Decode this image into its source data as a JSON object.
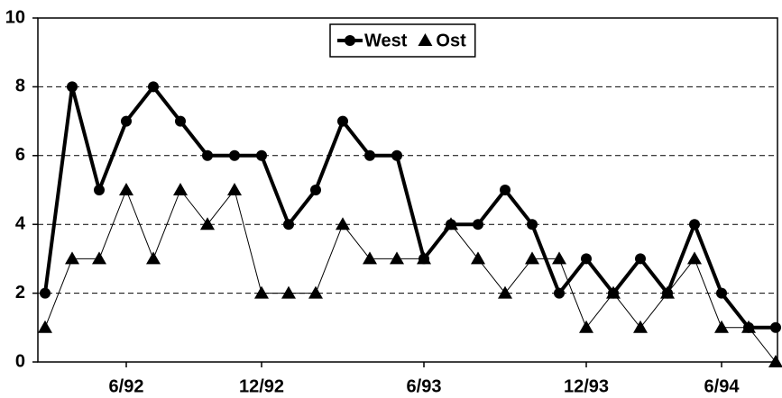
{
  "chart_data": {
    "type": "line",
    "categories": [
      null,
      null,
      null,
      "6/92",
      null,
      null,
      null,
      null,
      "12/92",
      null,
      null,
      null,
      null,
      null,
      "6/93",
      null,
      null,
      null,
      null,
      null,
      "12/93",
      null,
      null,
      null,
      null,
      "6/94",
      null,
      null
    ],
    "series": [
      {
        "name": "West",
        "color": "#000000",
        "marker": "circle",
        "line_width": 4,
        "values": [
          2,
          8,
          5,
          7,
          8,
          7,
          6,
          6,
          6,
          4,
          5,
          7,
          6,
          6,
          3,
          4,
          4,
          5,
          4,
          2,
          3,
          2,
          3,
          2,
          4,
          2,
          1,
          1
        ]
      },
      {
        "name": "Ost",
        "color": "#000000",
        "marker": "triangle",
        "line_width": 1,
        "values": [
          1,
          3,
          3,
          5,
          3,
          5,
          4,
          5,
          2,
          2,
          2,
          4,
          3,
          3,
          3,
          4,
          3,
          2,
          3,
          3,
          1,
          2,
          1,
          2,
          3,
          1,
          1,
          0
        ]
      }
    ],
    "ylim": [
      0,
      10
    ],
    "yticks": [
      0,
      2,
      4,
      6,
      8,
      10
    ],
    "grid": true,
    "legend": "top"
  }
}
